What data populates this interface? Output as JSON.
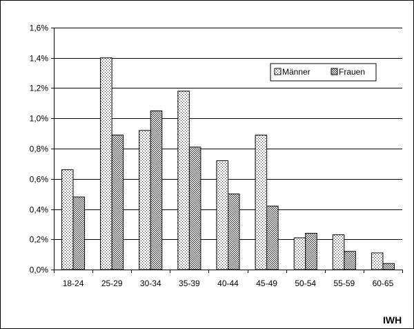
{
  "chart_data": {
    "type": "bar",
    "categories": [
      "18-24",
      "25-29",
      "30-34",
      "35-39",
      "40-44",
      "45-49",
      "50-54",
      "55-59",
      "60-65"
    ],
    "series": [
      {
        "name": "Männer",
        "values": [
          0.66,
          1.4,
          0.92,
          1.18,
          0.72,
          0.89,
          0.21,
          0.23,
          0.11
        ]
      },
      {
        "name": "Frauen",
        "values": [
          0.48,
          0.89,
          1.05,
          0.81,
          0.5,
          0.42,
          0.24,
          0.12,
          0.04
        ]
      }
    ],
    "ylim": [
      0,
      1.6
    ],
    "ytick_step": 0.2,
    "ytick_labels": [
      "0,0%",
      "0,2%",
      "0,4%",
      "0,6%",
      "0,8%",
      "1,0%",
      "1,2%",
      "1,4%",
      "1,6%"
    ],
    "grid": true,
    "legend_position": "top-right",
    "source_label": "IWH"
  }
}
